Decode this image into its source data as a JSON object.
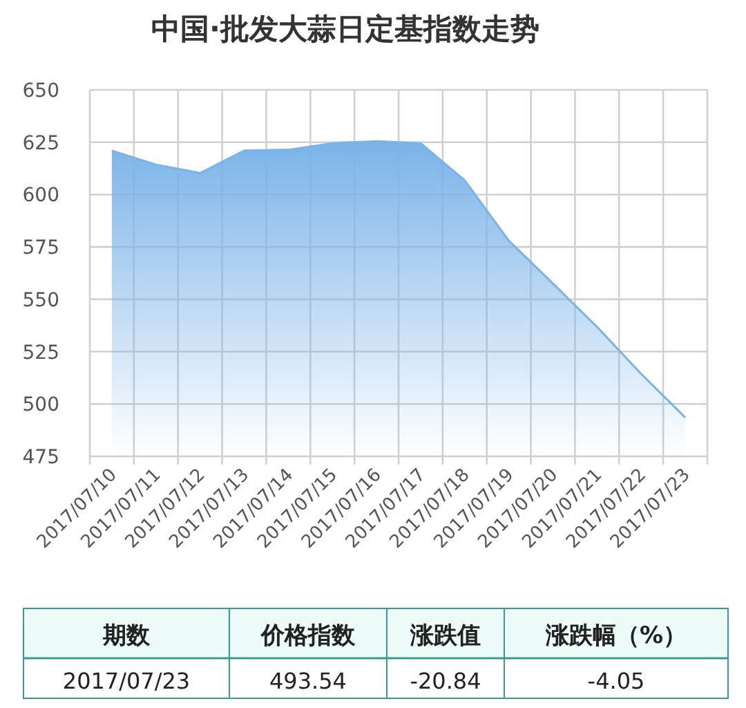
{
  "chart_data": {
    "type": "area",
    "title": "中国·批发大蒜日定基指数走势",
    "categories": [
      "2017/07/10",
      "2017/07/11",
      "2017/07/12",
      "2017/07/13",
      "2017/07/14",
      "2017/07/15",
      "2017/07/16",
      "2017/07/17",
      "2017/07/18",
      "2017/07/19",
      "2017/07/20",
      "2017/07/21",
      "2017/07/22",
      "2017/07/23"
    ],
    "series": [
      {
        "color": "#7ab3e8",
        "values": [
          621,
          614.3,
          610.3,
          621,
          621.4,
          624.5,
          625.5,
          624.5,
          606.8,
          578,
          557.5,
          536.8,
          514.38,
          493.54
        ]
      }
    ],
    "ylim": [
      475,
      650
    ],
    "yticks": [
      475,
      500,
      525,
      550,
      575,
      600,
      625,
      650
    ],
    "grid": true,
    "annotations": [
      "期数",
      "价格指数",
      "涨跌值",
      "涨跌幅（%）",
      "2017/07/23",
      "493.54",
      "-20.84",
      "-4.05"
    ]
  }
}
